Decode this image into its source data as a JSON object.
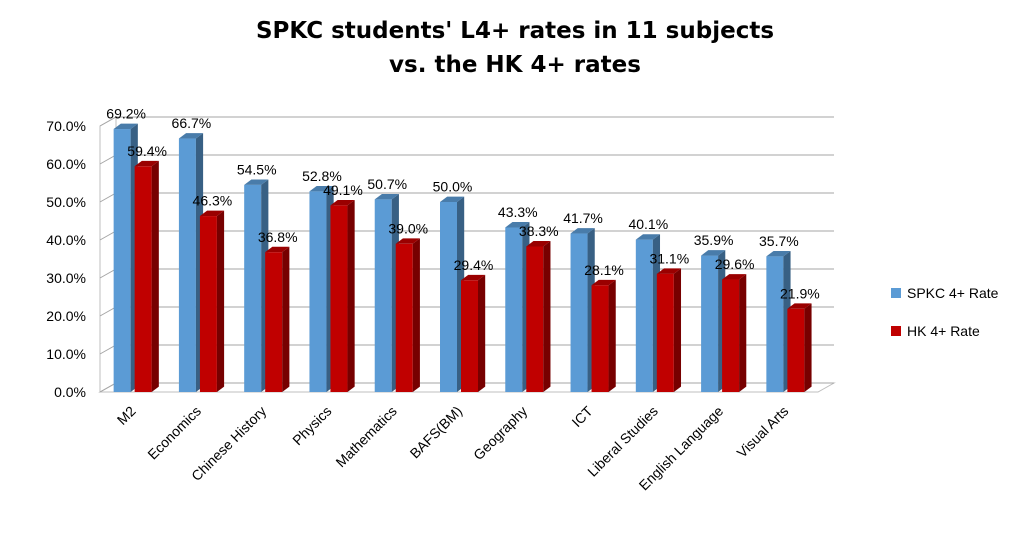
{
  "chart_data": {
    "type": "bar",
    "title": "SPKC students' L4+ rates in 11 subjects",
    "subtitle": "vs. the HK 4+ rates",
    "categories": [
      "M2",
      "Economics",
      "Chinese History",
      "Physics",
      "Mathematics",
      "BAFS(BM)",
      "Geography",
      "ICT",
      "Liberal Studies",
      "English Language",
      "Visual Arts"
    ],
    "series": [
      {
        "name": "SPKC 4+ Rate",
        "color": "#5B9BD5",
        "values": [
          69.2,
          66.7,
          54.5,
          52.8,
          50.7,
          50.0,
          43.3,
          41.7,
          40.1,
          35.9,
          35.7
        ],
        "labels": [
          "69.2%",
          "66.7%",
          "54.5%",
          "52.8%",
          "50.7%",
          "50.0%",
          "43.3%",
          "41.7%",
          "40.1%",
          "35.9%",
          "35.7%"
        ]
      },
      {
        "name": "HK 4+ Rate",
        "color": "#C00000",
        "values": [
          59.4,
          46.3,
          36.8,
          49.1,
          39.0,
          29.4,
          38.3,
          28.1,
          31.1,
          29.6,
          21.9
        ],
        "labels": [
          "59.4%",
          "46.3%",
          "36.8%",
          "49.1%",
          "39.0%",
          "29.4%",
          "38.3%",
          "28.1%",
          "31.1%",
          "29.6%",
          "21.9%"
        ]
      }
    ],
    "y_ticks": [
      "0.0%",
      "10.0%",
      "20.0%",
      "30.0%",
      "40.0%",
      "50.0%",
      "60.0%",
      "70.0%"
    ],
    "ylim": [
      0,
      70
    ],
    "grid": true,
    "legend_position": "right",
    "style": "3d-clustered-column"
  }
}
